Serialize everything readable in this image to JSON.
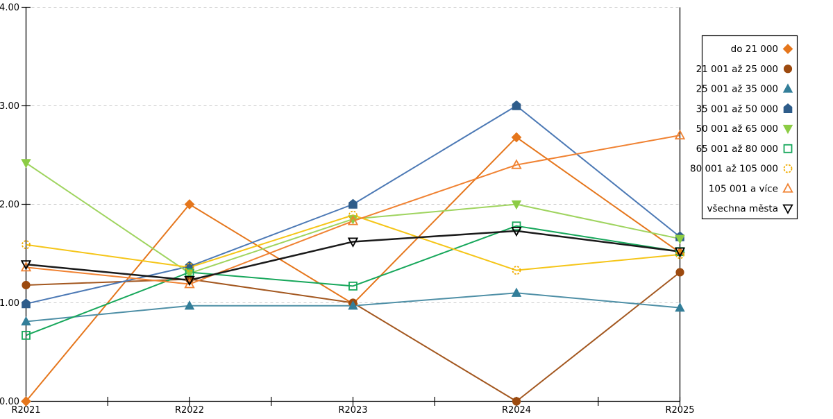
{
  "chart_data": {
    "type": "line",
    "title": "",
    "xlabel": "",
    "ylabel": "",
    "x_categories": [
      "R2021",
      "R2022",
      "R2023",
      "R2024",
      "R2025"
    ],
    "y_tick_labels": [
      "0.00",
      "1.00",
      "2.00",
      "3.00",
      "4.00"
    ],
    "ylim": [
      0,
      4
    ],
    "grid": "horizontal-dashed",
    "legend_position": "right-outside-box",
    "axis_color": "#000000",
    "grid_color": "#c9c9c9",
    "background_color": "#ffffff",
    "series": [
      {
        "name": "do 21 000",
        "marker": "diamond",
        "marker_style": "filled",
        "color": "#e5761c",
        "line_color": "#e5761c",
        "values": [
          0.0,
          2.0,
          0.99,
          2.68,
          1.51
        ]
      },
      {
        "name": "21 001 až 25 000",
        "marker": "circle",
        "marker_style": "filled",
        "color": "#9c4a0f",
        "line_color": "#a3571f",
        "values": [
          1.18,
          1.24,
          1.0,
          0.0,
          1.31
        ]
      },
      {
        "name": "25 001 až 35 000",
        "marker": "triangle-up",
        "marker_style": "filled",
        "color": "#337e99",
        "line_color": "#4e8fa6",
        "values": [
          0.81,
          0.97,
          0.97,
          1.1,
          0.95
        ]
      },
      {
        "name": "35 001 až 50 000",
        "marker": "pentagon",
        "marker_style": "filled",
        "color": "#2e5c8a",
        "line_color": "#4c79b5",
        "values": [
          0.99,
          1.37,
          2.0,
          3.0,
          1.67
        ]
      },
      {
        "name": "50 001 až 65 000",
        "marker": "triangle-down",
        "marker_style": "filled",
        "color": "#8ccc44",
        "line_color": "#9fd45f",
        "values": [
          2.42,
          1.3,
          1.85,
          2.0,
          1.65
        ]
      },
      {
        "name": "65 001 až 80 000",
        "marker": "square",
        "marker_style": "open",
        "color": "#17a75b",
        "line_color": "#17a75b",
        "values": [
          0.67,
          1.31,
          1.17,
          1.78,
          1.52
        ]
      },
      {
        "name": "80 001 až 105 000",
        "marker": "circle",
        "marker_style": "open-dashed",
        "color": "#f0ab00",
        "line_color": "#f5c518",
        "values": [
          1.59,
          1.36,
          1.89,
          1.33,
          1.49
        ]
      },
      {
        "name": "105 001 a více",
        "marker": "triangle-up",
        "marker_style": "open",
        "color": "#f08232",
        "line_color": "#f08232",
        "values": [
          1.36,
          1.19,
          1.83,
          2.4,
          2.7
        ]
      },
      {
        "name": "všechna města",
        "marker": "triangle-down",
        "marker_style": "open",
        "color": "#000000",
        "line_color": "#1a1a1a",
        "line_width": 2.5,
        "values": [
          1.39,
          1.23,
          1.62,
          1.73,
          1.52
        ]
      }
    ]
  }
}
